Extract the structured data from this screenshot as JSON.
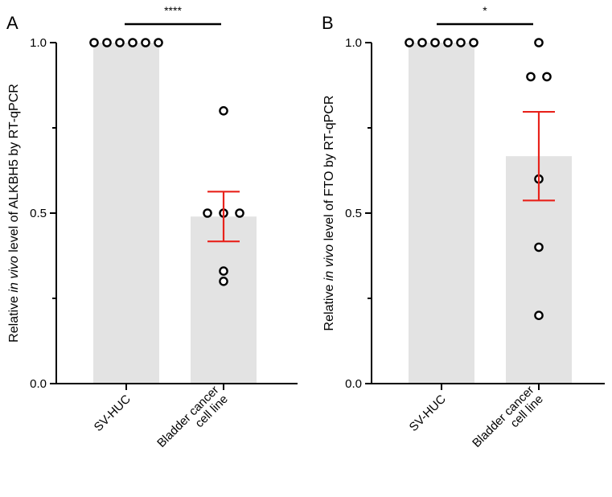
{
  "chart_data": [
    {
      "panel": "A",
      "type": "bar",
      "categories": [
        "SV-HUC",
        "Bladder cancer\ncell line"
      ],
      "category_lines": [
        [
          "SV-HUC"
        ],
        [
          "Bladder cancer",
          "cell line"
        ]
      ],
      "values": [
        1.0,
        0.49
      ],
      "sem": [
        0,
        0.073
      ],
      "points": [
        [
          1,
          1,
          1,
          1,
          1,
          1
        ],
        [
          0.8,
          0.5,
          0.5,
          0.5,
          0.33,
          0.3
        ]
      ],
      "ylabel_pre": "Relative ",
      "ylabel_italic": "in vivo",
      "ylabel_post": " level of ALKBH5 by RT-qPCR",
      "ylim": [
        0,
        1.0
      ],
      "yticks": [
        0,
        0.5,
        1.0
      ],
      "ytick_labels": [
        "0.0",
        "0.5",
        "1.0"
      ],
      "significance": "****",
      "bar_color": "#e3e3e3",
      "error_color": "#e8231c"
    },
    {
      "panel": "B",
      "type": "bar",
      "categories": [
        "SV-HUC",
        "Bladder cancer\ncell line"
      ],
      "category_lines": [
        [
          "SV-HUC"
        ],
        [
          "Bladder cancer",
          "cell line"
        ]
      ],
      "values": [
        1.0,
        0.667
      ],
      "sem": [
        0,
        0.13
      ],
      "points": [
        [
          1,
          1,
          1,
          1,
          1,
          1
        ],
        [
          1.0,
          0.9,
          0.9,
          0.6,
          0.4,
          0.2
        ]
      ],
      "ylabel_pre": "Relative ",
      "ylabel_italic": "in vivo",
      "ylabel_post": " level of FTO by RT-qPCR",
      "ylim": [
        0,
        1.0
      ],
      "yticks": [
        0,
        0.5,
        1.0
      ],
      "ytick_labels": [
        "0.0",
        "0.5",
        "1.0"
      ],
      "significance": "*",
      "bar_color": "#e3e3e3",
      "error_color": "#e8231c"
    }
  ]
}
